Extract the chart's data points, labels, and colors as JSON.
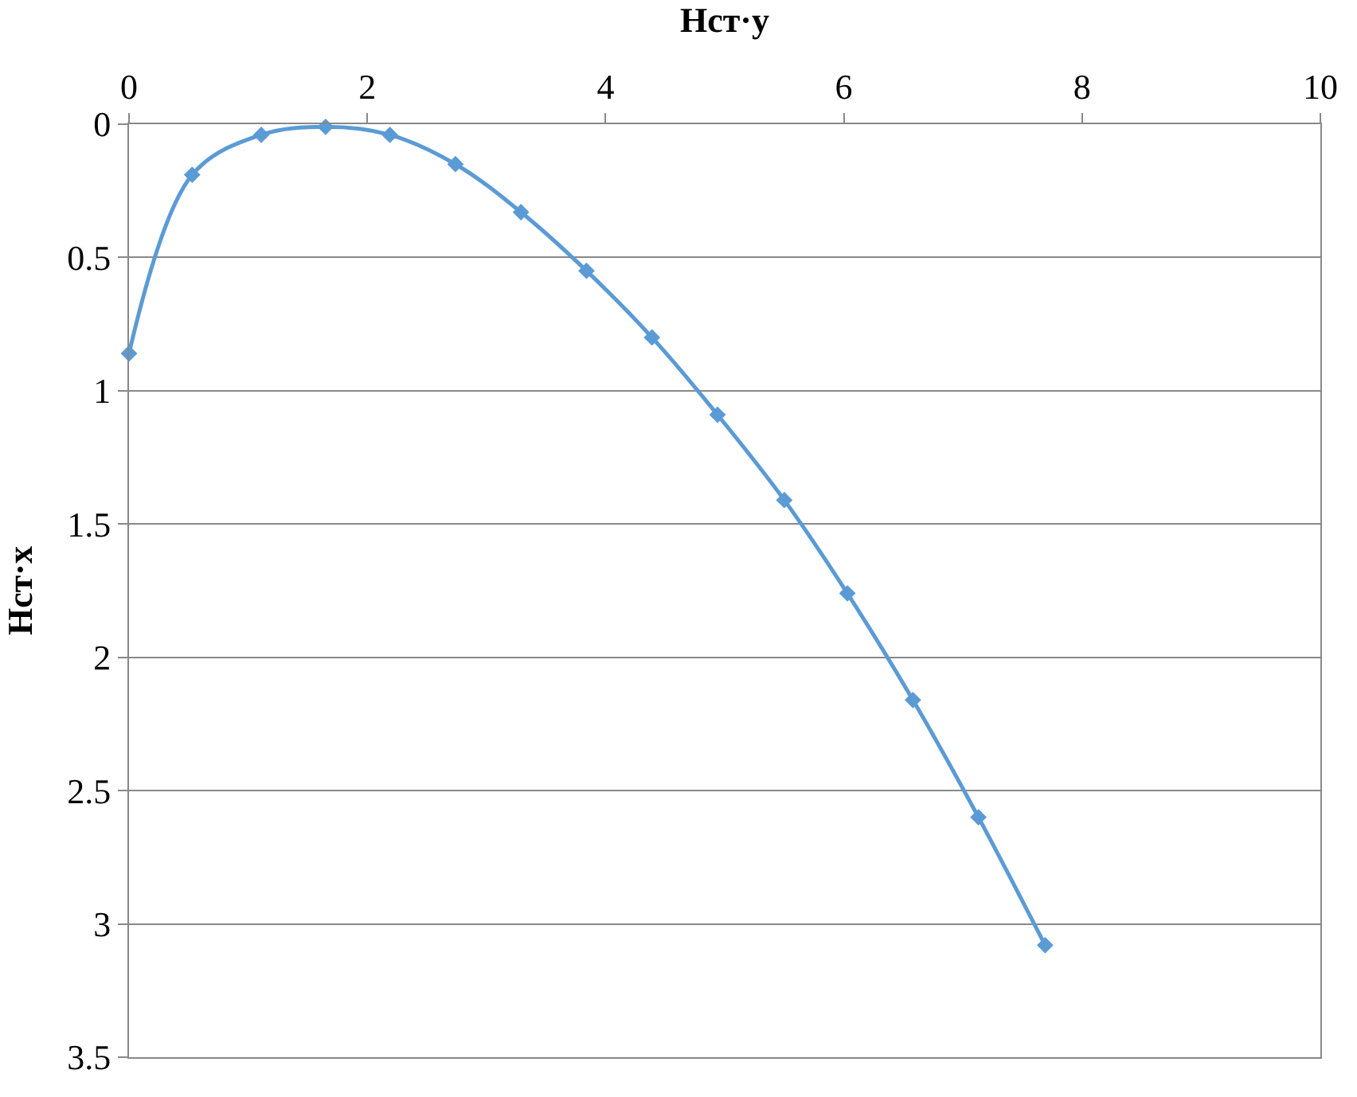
{
  "chart_data": {
    "type": "line",
    "xlabel": "Нст·у",
    "ylabel": "Нст·х",
    "x": [
      0,
      0.53,
      1.11,
      1.65,
      2.19,
      2.74,
      3.29,
      3.84,
      4.39,
      4.94,
      5.5,
      6.03,
      6.58,
      7.13,
      7.69
    ],
    "series": [
      {
        "color": "#5b9bd5",
        "values": [
          0.86,
          0.19,
          0.04,
          0.01,
          0.04,
          0.15,
          0.33,
          0.55,
          0.8,
          1.09,
          1.41,
          1.76,
          2.16,
          2.6,
          3.08
        ]
      }
    ],
    "xlim": [
      0,
      10
    ],
    "xticks": [
      0,
      2,
      4,
      6,
      8,
      10
    ],
    "ylim": [
      3.5,
      0
    ],
    "yticks": [
      0,
      0.5,
      1,
      1.5,
      2,
      2.5,
      3,
      3.5
    ],
    "grid": "y",
    "marker": "diamond",
    "line_style": "solid"
  }
}
